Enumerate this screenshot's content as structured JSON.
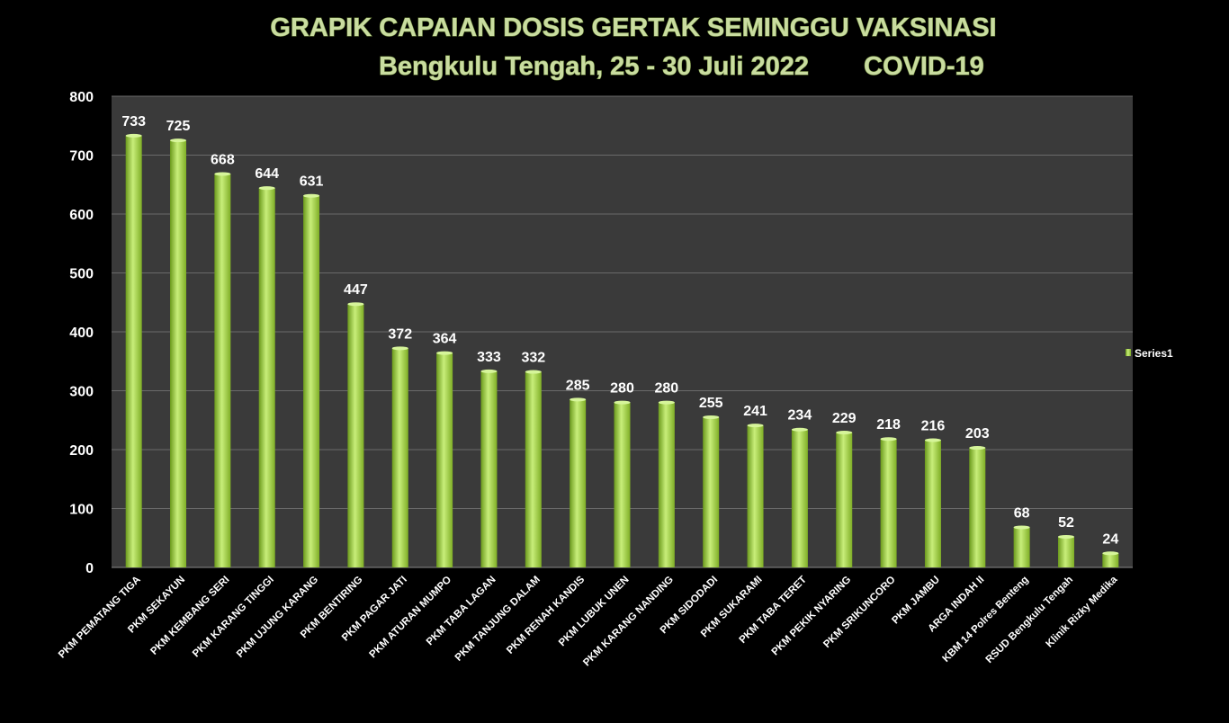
{
  "chart_data": {
    "type": "bar",
    "title": "GRAPIK CAPAIAN DOSIS GERTAK  SEMINGGU VAKSINASI",
    "subtitle": "Bengkulu Tengah, 25 - 30 Juli 2022",
    "subtitle_overlay": "COVID-19",
    "xlabel": "",
    "ylabel": "",
    "ylim": [
      0,
      800
    ],
    "yticks": [
      0,
      100,
      200,
      300,
      400,
      500,
      600,
      700,
      800
    ],
    "grid": true,
    "legend": {
      "entries": [
        "Series1"
      ],
      "position": "right"
    },
    "colors": {
      "bar": "#9acd32",
      "bar_light": "#c8ee7a",
      "bar_dark": "#6b9a1c",
      "plot_bg": "#3a3a3a",
      "grid": "#6a6a6a"
    },
    "categories": [
      "PKM PEMATANG TIGA",
      "PKM SEKAYUN",
      "PKM KEMBANG SERI",
      "PKM KARANG TINGGI",
      "PKM UJUNG KARANG",
      "PKM BENTIRING",
      "PKM PAGAR JATI",
      "PKM ATURAN MUMPO",
      "PKM TABA LAGAN",
      "PKM TANJUNG DALAM",
      "PKM RENAH KANDIS",
      "PKM LUBUK UNEN",
      "PKM KARANG NANDING",
      "PKM SIDODADI",
      "PKM SUKARAMI",
      "PKM TABA TERET",
      "PKM PEKIK NYARING",
      "PKM SRIKUNCORO",
      "PKM JAMBU",
      "ARGA INDAH II",
      "KBM 14 Polres Benteng",
      "RSUD Bengkulu Tengah",
      "Klinik Rizky Medika"
    ],
    "series": [
      {
        "name": "Series1",
        "values": [
          733,
          725,
          668,
          644,
          631,
          447,
          372,
          364,
          333,
          332,
          285,
          280,
          280,
          255,
          241,
          234,
          229,
          218,
          216,
          203,
          68,
          52,
          24
        ]
      }
    ]
  }
}
